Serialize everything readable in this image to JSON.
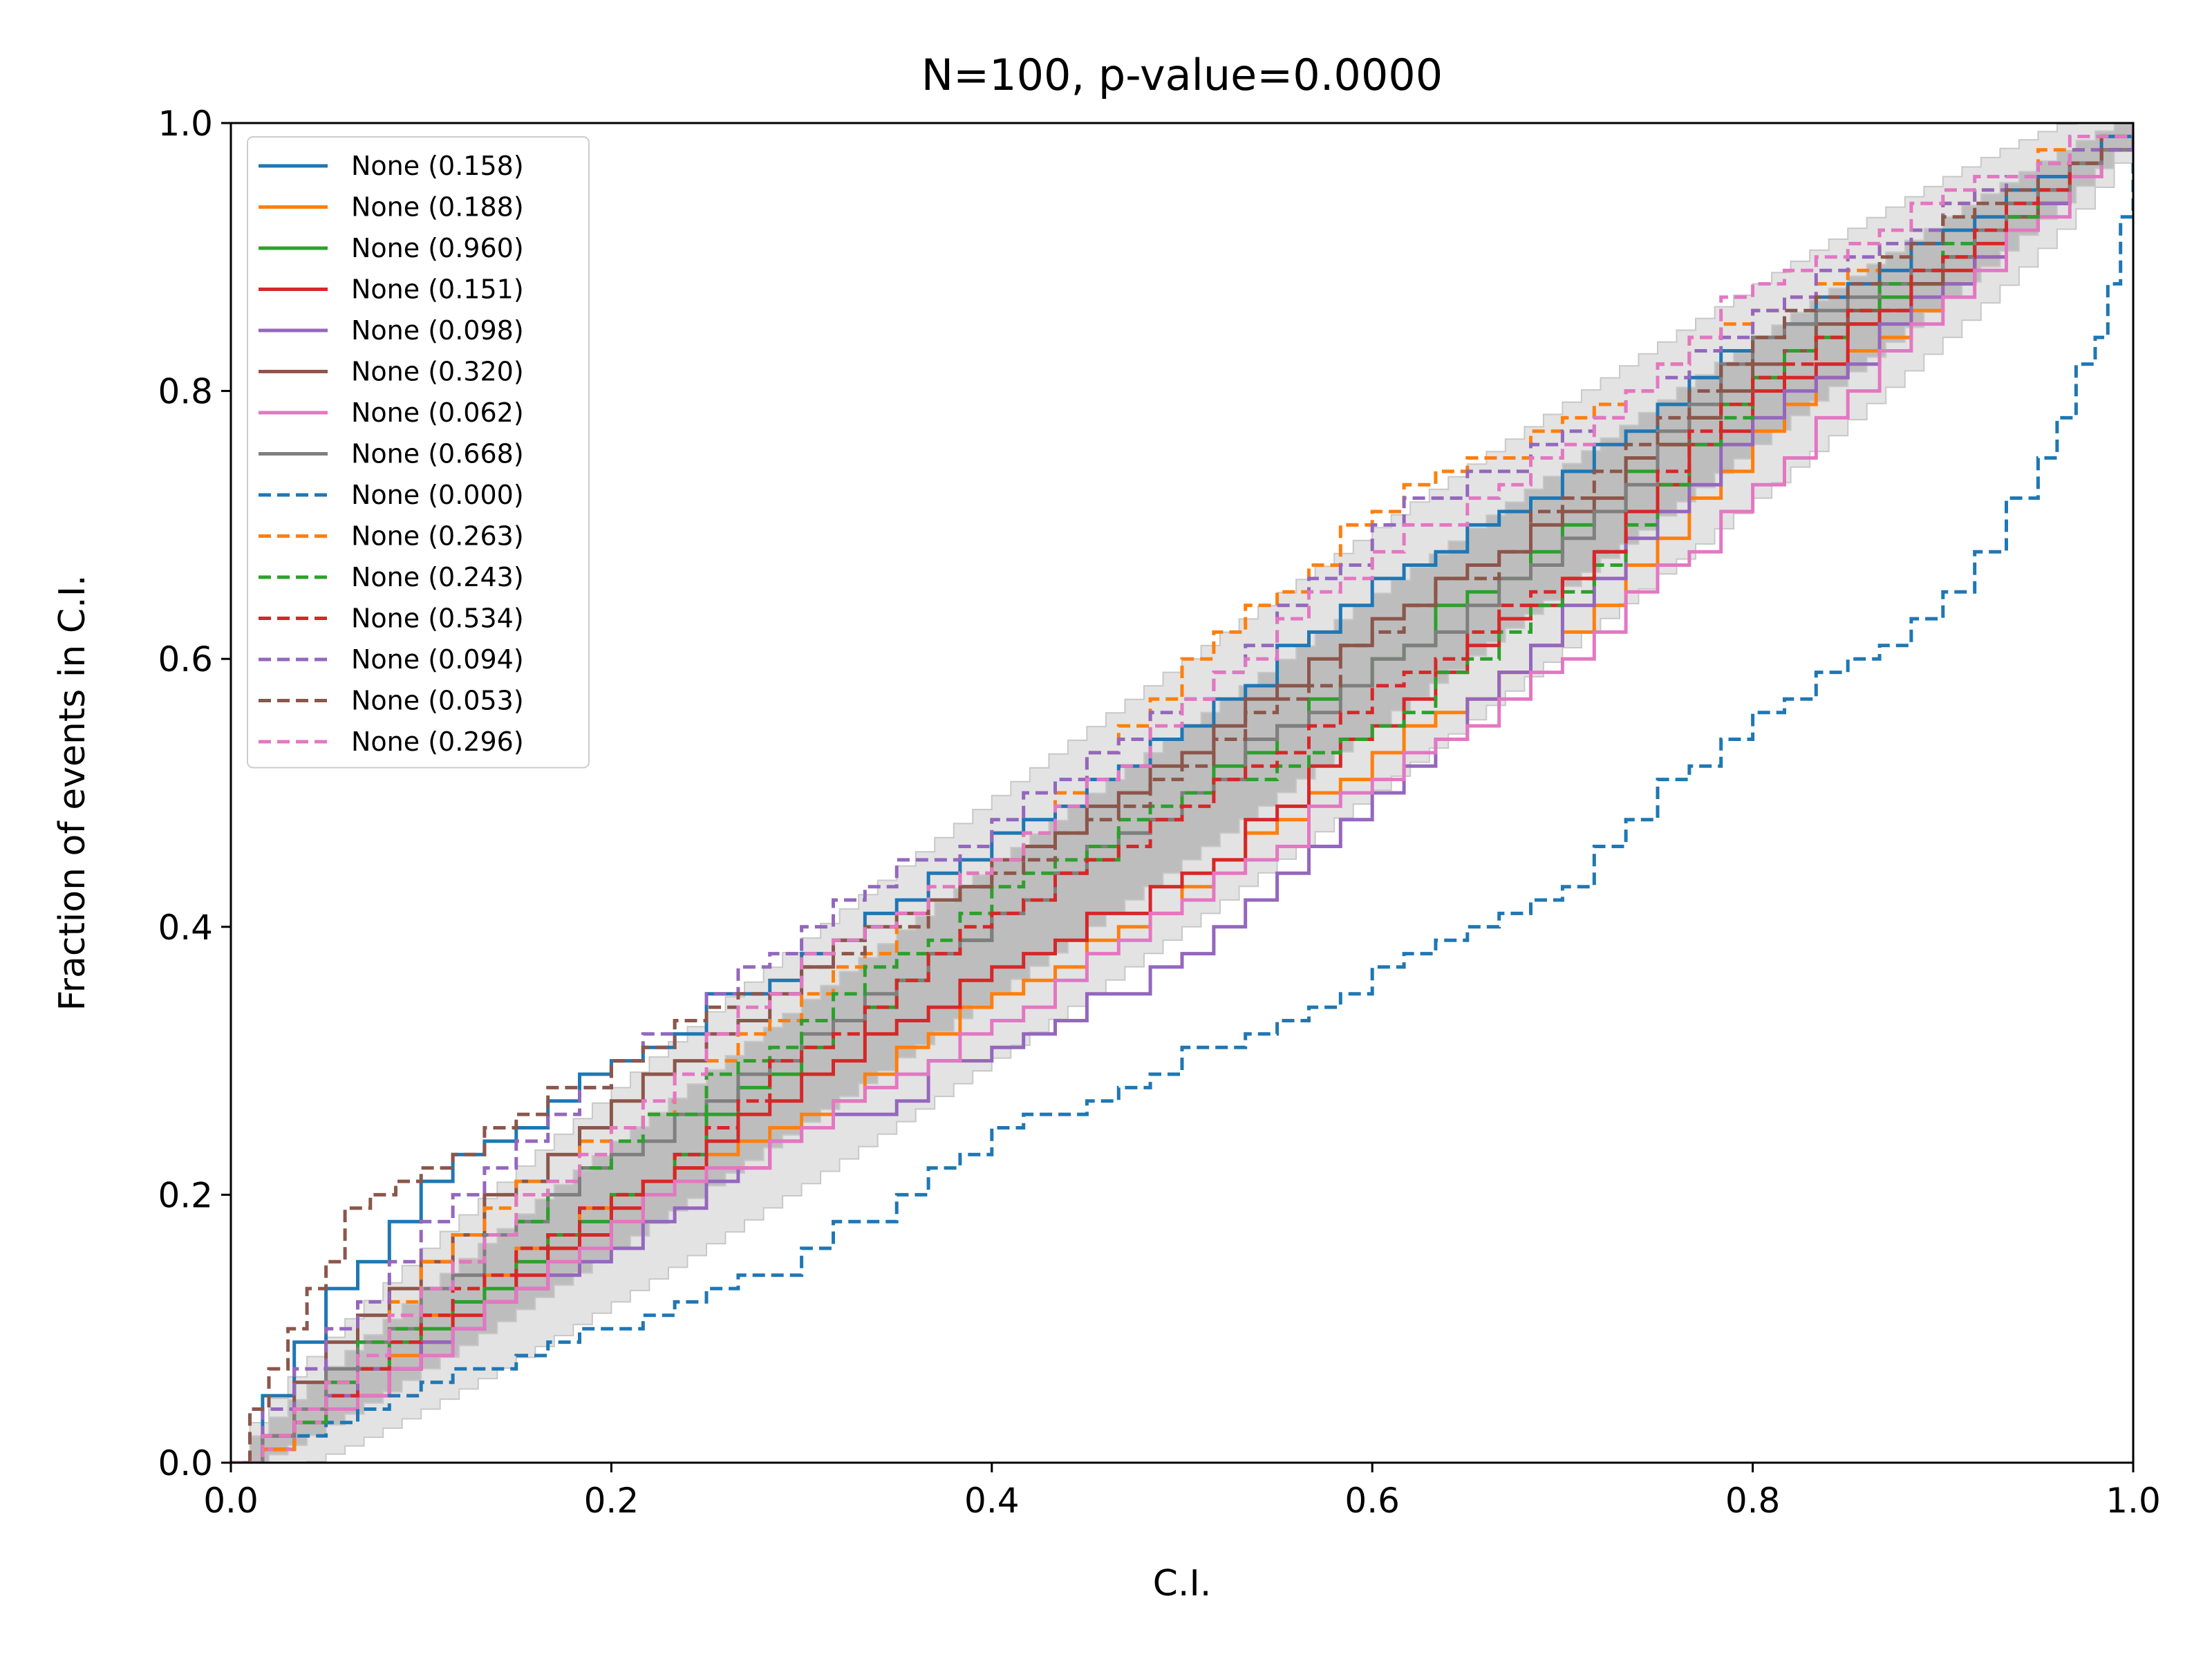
{
  "chart_data": {
    "type": "line",
    "title": "N=100, p-value=0.0000",
    "xlabel": "C.I.",
    "ylabel": "Fraction of events in C.I.",
    "xlim": [
      0,
      1
    ],
    "ylim": [
      0,
      1
    ],
    "xticks": [
      "0.0",
      "0.2",
      "0.4",
      "0.6",
      "0.8",
      "1.0"
    ],
    "yticks": [
      "0.0",
      "0.2",
      "0.4",
      "0.6",
      "0.8",
      "1.0"
    ],
    "grid": false,
    "legend_position": "upper-left",
    "confidence_bands": [
      {
        "level": "1-sigma",
        "color": "#bdbdbd",
        "halfwidth_at_mid": 0.05
      },
      {
        "level": "2-sigma",
        "color": "#e3e3e3",
        "halfwidth_at_mid": 0.1
      }
    ],
    "series": [
      {
        "name": "None (0.158)",
        "color": "#1f77b4",
        "style": "solid",
        "points": [
          [
            0,
            0
          ],
          [
            0.05,
            0.13
          ],
          [
            0.1,
            0.21
          ],
          [
            0.2,
            0.3
          ],
          [
            0.3,
            0.38
          ],
          [
            0.4,
            0.47
          ],
          [
            0.5,
            0.55
          ],
          [
            0.6,
            0.66
          ],
          [
            0.7,
            0.74
          ],
          [
            0.8,
            0.84
          ],
          [
            0.9,
            0.92
          ],
          [
            1,
            1
          ]
        ]
      },
      {
        "name": "None (0.188)",
        "color": "#ff7f0e",
        "style": "solid",
        "points": [
          [
            0,
            0
          ],
          [
            0.05,
            0.04
          ],
          [
            0.1,
            0.11
          ],
          [
            0.2,
            0.2
          ],
          [
            0.3,
            0.26
          ],
          [
            0.4,
            0.35
          ],
          [
            0.5,
            0.43
          ],
          [
            0.6,
            0.53
          ],
          [
            0.7,
            0.62
          ],
          [
            0.8,
            0.77
          ],
          [
            0.9,
            0.88
          ],
          [
            1,
            1
          ]
        ]
      },
      {
        "name": "None (0.960)",
        "color": "#2ca02c",
        "style": "solid",
        "points": [
          [
            0,
            0
          ],
          [
            0.05,
            0.06
          ],
          [
            0.1,
            0.1
          ],
          [
            0.2,
            0.2
          ],
          [
            0.3,
            0.31
          ],
          [
            0.4,
            0.41
          ],
          [
            0.5,
            0.5
          ],
          [
            0.6,
            0.6
          ],
          [
            0.7,
            0.7
          ],
          [
            0.8,
            0.81
          ],
          [
            0.9,
            0.9
          ],
          [
            1,
            1
          ]
        ]
      },
      {
        "name": "None (0.151)",
        "color": "#d62728",
        "style": "solid",
        "points": [
          [
            0,
            0
          ],
          [
            0.05,
            0.04
          ],
          [
            0.1,
            0.09
          ],
          [
            0.2,
            0.19
          ],
          [
            0.3,
            0.29
          ],
          [
            0.4,
            0.37
          ],
          [
            0.5,
            0.44
          ],
          [
            0.6,
            0.55
          ],
          [
            0.7,
            0.66
          ],
          [
            0.8,
            0.8
          ],
          [
            0.9,
            0.89
          ],
          [
            1,
            1
          ]
        ]
      },
      {
        "name": "None (0.098)",
        "color": "#9467bd",
        "style": "solid",
        "points": [
          [
            0,
            0
          ],
          [
            0.05,
            0.05
          ],
          [
            0.1,
            0.09
          ],
          [
            0.2,
            0.16
          ],
          [
            0.3,
            0.25
          ],
          [
            0.4,
            0.31
          ],
          [
            0.5,
            0.38
          ],
          [
            0.6,
            0.5
          ],
          [
            0.7,
            0.64
          ],
          [
            0.8,
            0.78
          ],
          [
            0.9,
            0.88
          ],
          [
            1,
            1
          ]
        ]
      },
      {
        "name": "None (0.320)",
        "color": "#8c564b",
        "style": "solid",
        "points": [
          [
            0,
            0
          ],
          [
            0.05,
            0.09
          ],
          [
            0.1,
            0.15
          ],
          [
            0.2,
            0.27
          ],
          [
            0.3,
            0.37
          ],
          [
            0.4,
            0.45
          ],
          [
            0.5,
            0.53
          ],
          [
            0.6,
            0.63
          ],
          [
            0.7,
            0.71
          ],
          [
            0.8,
            0.82
          ],
          [
            0.9,
            0.9
          ],
          [
            1,
            1
          ]
        ]
      },
      {
        "name": "None (0.062)",
        "color": "#e377c2",
        "style": "solid",
        "points": [
          [
            0,
            0
          ],
          [
            0.05,
            0.04
          ],
          [
            0.1,
            0.08
          ],
          [
            0.2,
            0.18
          ],
          [
            0.3,
            0.25
          ],
          [
            0.4,
            0.33
          ],
          [
            0.5,
            0.42
          ],
          [
            0.6,
            0.51
          ],
          [
            0.7,
            0.6
          ],
          [
            0.8,
            0.73
          ],
          [
            0.9,
            0.87
          ],
          [
            1,
            1
          ]
        ]
      },
      {
        "name": "None (0.668)",
        "color": "#7f7f7f",
        "style": "solid",
        "points": [
          [
            0,
            0
          ],
          [
            0.05,
            0.07
          ],
          [
            0.1,
            0.13
          ],
          [
            0.2,
            0.23
          ],
          [
            0.3,
            0.32
          ],
          [
            0.4,
            0.41
          ],
          [
            0.5,
            0.5
          ],
          [
            0.6,
            0.6
          ],
          [
            0.7,
            0.69
          ],
          [
            0.8,
            0.84
          ],
          [
            0.9,
            0.9
          ],
          [
            1,
            1
          ]
        ]
      },
      {
        "name": "None (0.000)",
        "color": "#1f77b4",
        "style": "dashed",
        "points": [
          [
            0,
            0
          ],
          [
            0.1,
            0.06
          ],
          [
            0.2,
            0.1
          ],
          [
            0.3,
            0.16
          ],
          [
            0.4,
            0.25
          ],
          [
            0.45,
            0.27
          ],
          [
            0.5,
            0.31
          ],
          [
            0.55,
            0.33
          ],
          [
            0.6,
            0.37
          ],
          [
            0.65,
            0.4
          ],
          [
            0.7,
            0.43
          ],
          [
            0.75,
            0.51
          ],
          [
            0.8,
            0.56
          ],
          [
            0.85,
            0.6
          ],
          [
            0.9,
            0.65
          ],
          [
            0.95,
            0.75
          ],
          [
            0.98,
            0.84
          ],
          [
            1,
            0.97
          ]
        ]
      },
      {
        "name": "None (0.263)",
        "color": "#ff7f0e",
        "style": "dashed",
        "points": [
          [
            0,
            0
          ],
          [
            0.05,
            0.06
          ],
          [
            0.1,
            0.15
          ],
          [
            0.2,
            0.25
          ],
          [
            0.3,
            0.35
          ],
          [
            0.4,
            0.45
          ],
          [
            0.5,
            0.6
          ],
          [
            0.6,
            0.71
          ],
          [
            0.7,
            0.78
          ],
          [
            0.8,
            0.86
          ],
          [
            0.9,
            0.94
          ],
          [
            1,
            1
          ]
        ]
      },
      {
        "name": "None (0.243)",
        "color": "#2ca02c",
        "style": "dashed",
        "points": [
          [
            0,
            0
          ],
          [
            0.05,
            0.06
          ],
          [
            0.1,
            0.13
          ],
          [
            0.2,
            0.24
          ],
          [
            0.3,
            0.33
          ],
          [
            0.4,
            0.43
          ],
          [
            0.5,
            0.5
          ],
          [
            0.6,
            0.55
          ],
          [
            0.7,
            0.65
          ],
          [
            0.8,
            0.81
          ],
          [
            0.9,
            0.91
          ],
          [
            1,
            1
          ]
        ]
      },
      {
        "name": "None (0.534)",
        "color": "#d62728",
        "style": "dashed",
        "points": [
          [
            0,
            0
          ],
          [
            0.05,
            0.05
          ],
          [
            0.1,
            0.11
          ],
          [
            0.2,
            0.2
          ],
          [
            0.3,
            0.31
          ],
          [
            0.4,
            0.41
          ],
          [
            0.5,
            0.49
          ],
          [
            0.6,
            0.58
          ],
          [
            0.7,
            0.66
          ],
          [
            0.8,
            0.81
          ],
          [
            0.9,
            0.9
          ],
          [
            1,
            1
          ]
        ]
      },
      {
        "name": "None (0.094)",
        "color": "#9467bd",
        "style": "dashed",
        "points": [
          [
            0,
            0
          ],
          [
            0.05,
            0.1
          ],
          [
            0.1,
            0.18
          ],
          [
            0.2,
            0.3
          ],
          [
            0.3,
            0.4
          ],
          [
            0.4,
            0.48
          ],
          [
            0.5,
            0.57
          ],
          [
            0.6,
            0.7
          ],
          [
            0.7,
            0.77
          ],
          [
            0.8,
            0.86
          ],
          [
            0.9,
            0.94
          ],
          [
            1,
            1
          ]
        ]
      },
      {
        "name": "None (0.053)",
        "color": "#8c564b",
        "style": "dashed",
        "points": [
          [
            0,
            0
          ],
          [
            0.03,
            0.1
          ],
          [
            0.06,
            0.19
          ],
          [
            0.1,
            0.22
          ],
          [
            0.2,
            0.3
          ],
          [
            0.3,
            0.37
          ],
          [
            0.4,
            0.44
          ],
          [
            0.5,
            0.52
          ],
          [
            0.6,
            0.62
          ],
          [
            0.7,
            0.72
          ],
          [
            0.8,
            0.84
          ],
          [
            0.9,
            0.93
          ],
          [
            1,
            1
          ]
        ]
      },
      {
        "name": "None (0.296)",
        "color": "#e377c2",
        "style": "dashed",
        "points": [
          [
            0,
            0
          ],
          [
            0.05,
            0.06
          ],
          [
            0.1,
            0.13
          ],
          [
            0.2,
            0.25
          ],
          [
            0.3,
            0.38
          ],
          [
            0.4,
            0.45
          ],
          [
            0.5,
            0.57
          ],
          [
            0.6,
            0.68
          ],
          [
            0.7,
            0.76
          ],
          [
            0.8,
            0.88
          ],
          [
            0.9,
            0.95
          ],
          [
            1,
            1
          ]
        ]
      }
    ]
  }
}
